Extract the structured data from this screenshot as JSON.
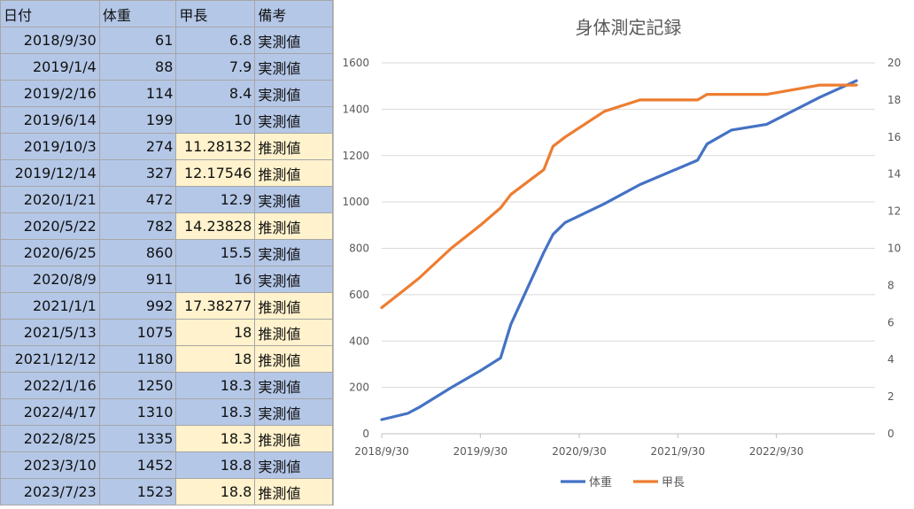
{
  "colors": {
    "blue_cell": "#b4c7e7",
    "yellow_cell": "#fff2cc",
    "weight_line": "#4472c4",
    "length_line": "#ed7d31"
  },
  "table": {
    "headers": [
      "日付",
      "体重",
      "甲長",
      "備考"
    ],
    "rows": [
      {
        "date": "2018/9/30",
        "weight": "61",
        "length": "6.8",
        "note": "実測値",
        "length_fill": "blue"
      },
      {
        "date": "2019/1/4",
        "weight": "88",
        "length": "7.9",
        "note": "実測値",
        "length_fill": "blue"
      },
      {
        "date": "2019/2/16",
        "weight": "114",
        "length": "8.4",
        "note": "実測値",
        "length_fill": "blue"
      },
      {
        "date": "2019/6/14",
        "weight": "199",
        "length": "10",
        "note": "実測値",
        "length_fill": "blue"
      },
      {
        "date": "2019/10/3",
        "weight": "274",
        "length": "11.28132",
        "note": "推測値",
        "length_fill": "yellow"
      },
      {
        "date": "2019/12/14",
        "weight": "327",
        "length": "12.17546",
        "note": "推測値",
        "length_fill": "yellow"
      },
      {
        "date": "2020/1/21",
        "weight": "472",
        "length": "12.9",
        "note": "実測値",
        "length_fill": "blue"
      },
      {
        "date": "2020/5/22",
        "weight": "782",
        "length": "14.23828",
        "note": "推測値",
        "length_fill": "yellow"
      },
      {
        "date": "2020/6/25",
        "weight": "860",
        "length": "15.5",
        "note": "実測値",
        "length_fill": "blue"
      },
      {
        "date": "2020/8/9",
        "weight": "911",
        "length": "16",
        "note": "実測値",
        "length_fill": "blue"
      },
      {
        "date": "2021/1/1",
        "weight": "992",
        "length": "17.38277",
        "note": "推測値",
        "length_fill": "yellow"
      },
      {
        "date": "2021/5/13",
        "weight": "1075",
        "length": "18",
        "note": "推測値",
        "length_fill": "yellow"
      },
      {
        "date": "2021/12/12",
        "weight": "1180",
        "length": "18",
        "note": "推測値",
        "length_fill": "yellow"
      },
      {
        "date": "2022/1/16",
        "weight": "1250",
        "length": "18.3",
        "note": "実測値",
        "length_fill": "blue"
      },
      {
        "date": "2022/4/17",
        "weight": "1310",
        "length": "18.3",
        "note": "実測値",
        "length_fill": "blue"
      },
      {
        "date": "2022/8/25",
        "weight": "1335",
        "length": "18.3",
        "note": "推測値",
        "length_fill": "yellow"
      },
      {
        "date": "2023/3/10",
        "weight": "1452",
        "length": "18.8",
        "note": "実測値",
        "length_fill": "blue"
      },
      {
        "date": "2023/7/23",
        "weight": "1523",
        "length": "18.8",
        "note": "推測値",
        "length_fill": "yellow"
      }
    ]
  },
  "chart_data": {
    "type": "line",
    "title": "身体測定記録",
    "x_axis": {
      "type": "date",
      "ticks": [
        "2018/9/30",
        "2019/9/30",
        "2020/9/30",
        "2021/9/30",
        "2022/9/30"
      ],
      "range": [
        "2018/9/30",
        "2023/9/30"
      ]
    },
    "y_axis_left": {
      "range": [
        0,
        1600
      ],
      "ticks": [
        0,
        200,
        400,
        600,
        800,
        1000,
        1200,
        1400,
        1600
      ]
    },
    "y_axis_right": {
      "range": [
        0,
        20
      ],
      "ticks": [
        0,
        2,
        4,
        6,
        8,
        10,
        12,
        14,
        16,
        18,
        20
      ]
    },
    "legend": "bottom",
    "gridlines": true,
    "series": [
      {
        "name": "体重",
        "axis": "left",
        "color": "#4472c4",
        "points": [
          [
            "2018/9/30",
            61
          ],
          [
            "2019/1/4",
            88
          ],
          [
            "2019/2/16",
            114
          ],
          [
            "2019/6/14",
            199
          ],
          [
            "2019/10/3",
            274
          ],
          [
            "2019/12/14",
            327
          ],
          [
            "2020/1/21",
            472
          ],
          [
            "2020/5/22",
            782
          ],
          [
            "2020/6/25",
            860
          ],
          [
            "2020/8/9",
            911
          ],
          [
            "2021/1/1",
            992
          ],
          [
            "2021/5/13",
            1075
          ],
          [
            "2021/12/12",
            1180
          ],
          [
            "2022/1/16",
            1250
          ],
          [
            "2022/4/17",
            1310
          ],
          [
            "2022/8/25",
            1335
          ],
          [
            "2023/3/10",
            1452
          ],
          [
            "2023/7/23",
            1523
          ]
        ]
      },
      {
        "name": "甲長",
        "axis": "right",
        "color": "#ed7d31",
        "points": [
          [
            "2018/9/30",
            6.8
          ],
          [
            "2019/1/4",
            7.9
          ],
          [
            "2019/2/16",
            8.4
          ],
          [
            "2019/6/14",
            10
          ],
          [
            "2019/10/3",
            11.28132
          ],
          [
            "2019/12/14",
            12.17546
          ],
          [
            "2020/1/21",
            12.9
          ],
          [
            "2020/5/22",
            14.23828
          ],
          [
            "2020/6/25",
            15.5
          ],
          [
            "2020/8/9",
            16
          ],
          [
            "2021/1/1",
            17.38277
          ],
          [
            "2021/5/13",
            18
          ],
          [
            "2021/12/12",
            18
          ],
          [
            "2022/1/16",
            18.3
          ],
          [
            "2022/4/17",
            18.3
          ],
          [
            "2022/8/25",
            18.3
          ],
          [
            "2023/3/10",
            18.8
          ],
          [
            "2023/7/23",
            18.8
          ]
        ]
      }
    ]
  }
}
